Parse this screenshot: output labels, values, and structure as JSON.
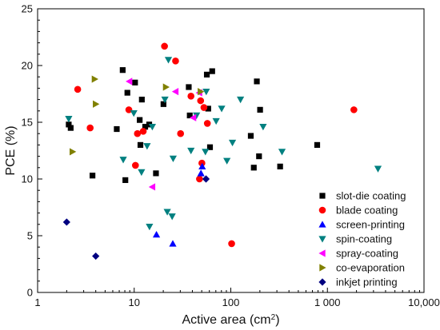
{
  "chart_data": {
    "type": "scatter",
    "title": "",
    "xlabel": "Active area (cm",
    "xlabel_sup": "2",
    "xlabel_close": ")",
    "ylabel": "PCE (%)",
    "x_scale": "log",
    "xlim": [
      1,
      10000
    ],
    "ylim": [
      0,
      25
    ],
    "x_ticks": [
      1,
      10,
      100,
      1000,
      10000
    ],
    "x_tick_labels": [
      "1",
      "10",
      "100",
      "1 000",
      "10,000"
    ],
    "y_ticks": [
      0,
      5,
      10,
      15,
      20,
      25
    ],
    "y_tick_labels": [
      "0",
      "5",
      "10",
      "15",
      "20",
      "25"
    ],
    "grid": false,
    "legend_position": "bottom-right",
    "series": [
      {
        "name": "slot-die coating",
        "marker": "square",
        "color": "#000000",
        "points": [
          [
            2.1,
            14.8
          ],
          [
            2.2,
            14.5
          ],
          [
            3.7,
            10.3
          ],
          [
            6.6,
            14.4
          ],
          [
            7.6,
            19.6
          ],
          [
            8.1,
            9.9
          ],
          [
            8.5,
            17.6
          ],
          [
            10.2,
            18.5
          ],
          [
            11.4,
            15.2
          ],
          [
            11.6,
            13.0
          ],
          [
            12.0,
            17.0
          ],
          [
            13.0,
            14.6
          ],
          [
            14.3,
            14.8
          ],
          [
            16.8,
            10.5
          ],
          [
            20.1,
            16.6
          ],
          [
            36.7,
            18.1
          ],
          [
            37.6,
            15.6
          ],
          [
            56.5,
            19.2
          ],
          [
            58.4,
            16.2
          ],
          [
            60.9,
            12.8
          ],
          [
            64.2,
            19.5
          ],
          [
            161.0,
            13.8
          ],
          [
            173.0,
            11.0
          ],
          [
            186.0,
            18.6
          ],
          [
            196.0,
            12.0
          ],
          [
            201.0,
            16.1
          ],
          [
            324.0,
            11.1
          ],
          [
            784.0,
            13.0
          ]
        ]
      },
      {
        "name": "blade coating",
        "marker": "circle",
        "color": "#ff0000",
        "points": [
          [
            2.6,
            17.9
          ],
          [
            3.5,
            14.5
          ],
          [
            8.8,
            16.1
          ],
          [
            10.3,
            11.2
          ],
          [
            10.8,
            14.0
          ],
          [
            12.4,
            14.2
          ],
          [
            20.6,
            21.7
          ],
          [
            26.8,
            20.4
          ],
          [
            30.2,
            14.0
          ],
          [
            38.7,
            17.3
          ],
          [
            47.4,
            10.0
          ],
          [
            48.7,
            16.9
          ],
          [
            50.2,
            11.4
          ],
          [
            52.7,
            16.3
          ],
          [
            57.2,
            14.9
          ],
          [
            102.0,
            4.3
          ],
          [
            1880.0,
            16.1
          ]
        ]
      },
      {
        "name": "screen-printing",
        "marker": "triangle-up",
        "color": "#0000ff",
        "points": [
          [
            17.0,
            5.1
          ],
          [
            25.1,
            4.3
          ],
          [
            49.1,
            10.5
          ],
          [
            50.6,
            11.1
          ]
        ]
      },
      {
        "name": "spin-coating",
        "marker": "triangle-down",
        "color": "#008080",
        "points": [
          [
            2.1,
            15.3
          ],
          [
            7.7,
            11.7
          ],
          [
            9.9,
            15.8
          ],
          [
            11.9,
            10.6
          ],
          [
            13.6,
            12.9
          ],
          [
            14.4,
            5.8
          ],
          [
            15.4,
            14.6
          ],
          [
            20.8,
            17.0
          ],
          [
            22.0,
            7.1
          ],
          [
            22.6,
            20.5
          ],
          [
            24.7,
            6.7
          ],
          [
            25.3,
            11.8
          ],
          [
            38.7,
            12.5
          ],
          [
            44.2,
            15.6
          ],
          [
            54.6,
            12.4
          ],
          [
            55.7,
            17.7
          ],
          [
            70.5,
            15.1
          ],
          [
            80.4,
            16.2
          ],
          [
            91.2,
            11.6
          ],
          [
            104.0,
            13.2
          ],
          [
            126.0,
            17.0
          ],
          [
            216.0,
            14.6
          ],
          [
            339.0,
            12.4
          ],
          [
            3340.0,
            10.9
          ]
        ]
      },
      {
        "name": "spray-coating",
        "marker": "triangle-left",
        "color": "#ff00ff",
        "points": [
          [
            8.9,
            18.6
          ],
          [
            15.4,
            9.3
          ],
          [
            26.8,
            17.7
          ],
          [
            40.9,
            15.4
          ],
          [
            47.2,
            17.6
          ]
        ]
      },
      {
        "name": "co-evaporation",
        "marker": "triangle-right",
        "color": "#808000",
        "points": [
          [
            2.3,
            12.4
          ],
          [
            3.9,
            18.8
          ],
          [
            4.0,
            16.6
          ],
          [
            21.3,
            18.1
          ],
          [
            48.7,
            17.7
          ]
        ]
      },
      {
        "name": "inkjet printing",
        "marker": "diamond",
        "color": "#000080",
        "points": [
          [
            2.0,
            6.2
          ],
          [
            4.0,
            3.2
          ],
          [
            55.4,
            10.0
          ]
        ]
      }
    ]
  }
}
